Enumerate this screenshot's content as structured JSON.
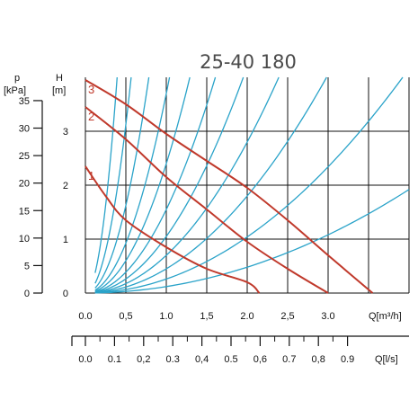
{
  "chart_data": {
    "type": "line",
    "title": "25-40 180",
    "colors": {
      "pump_curves": "#c0392b",
      "system_curves": "#2aa3c9",
      "grid": "#111111"
    },
    "x_axis": {
      "label": "Q[m³/h]",
      "range": [
        0,
        4.0
      ],
      "ticks": [
        {
          "v": 0.0,
          "t": "0.0"
        },
        {
          "v": 0.5,
          "t": "0,5"
        },
        {
          "v": 1.0,
          "t": "1.0"
        },
        {
          "v": 1.5,
          "t": "1,5"
        },
        {
          "v": 2.0,
          "t": "2.0"
        },
        {
          "v": 2.5,
          "t": "2,5"
        },
        {
          "v": 3.0,
          "t": "3.0"
        }
      ]
    },
    "x_axis_ls": {
      "label": "Q[l/s]",
      "ticks": [
        {
          "v": 0.0,
          "t": "0.0"
        },
        {
          "v": 0.1,
          "t": "0.1"
        },
        {
          "v": 0.2,
          "t": "0,2"
        },
        {
          "v": 0.3,
          "t": "0.3"
        },
        {
          "v": 0.4,
          "t": "0,4"
        },
        {
          "v": 0.5,
          "t": "0.5"
        },
        {
          "v": 0.6,
          "t": "0,6"
        },
        {
          "v": 0.7,
          "t": "0.7"
        },
        {
          "v": 0.8,
          "t": "0,8"
        },
        {
          "v": 0.9,
          "t": "0.9"
        }
      ]
    },
    "y_axis": {
      "label_line1": "H",
      "label_line2": "[m]",
      "range": [
        0,
        4.0
      ],
      "ticks": [
        {
          "v": 0,
          "t": "0"
        },
        {
          "v": 1,
          "t": "1"
        },
        {
          "v": 2,
          "t": "2"
        },
        {
          "v": 3,
          "t": "3"
        }
      ]
    },
    "y_axis_kpa": {
      "label_line1": "p",
      "label_line2": "[kPa]",
      "ticks": [
        {
          "v": 0,
          "t": "0"
        },
        {
          "v": 5,
          "t": "5"
        },
        {
          "v": 10,
          "t": "10"
        },
        {
          "v": 15,
          "t": "15"
        },
        {
          "v": 20,
          "t": "20"
        },
        {
          "v": 25,
          "t": "25"
        },
        {
          "v": 30,
          "t": "30"
        },
        {
          "v": 35,
          "t": "35"
        }
      ]
    },
    "pump_curves": [
      {
        "name": "1",
        "points": [
          [
            0,
            2.35
          ],
          [
            0.25,
            1.8
          ],
          [
            0.5,
            1.35
          ],
          [
            1.0,
            0.85
          ],
          [
            1.5,
            0.45
          ],
          [
            2.0,
            0.2
          ],
          [
            2.15,
            0.0
          ]
        ]
      },
      {
        "name": "2",
        "points": [
          [
            0,
            3.45
          ],
          [
            0.5,
            2.85
          ],
          [
            1.0,
            2.15
          ],
          [
            1.5,
            1.55
          ],
          [
            2.0,
            0.95
          ],
          [
            2.5,
            0.45
          ],
          [
            3.0,
            0.0
          ]
        ]
      },
      {
        "name": "3",
        "points": [
          [
            0,
            3.95
          ],
          [
            0.5,
            3.5
          ],
          [
            1.0,
            2.95
          ],
          [
            1.5,
            2.45
          ],
          [
            2.0,
            1.95
          ],
          [
            2.5,
            1.35
          ],
          [
            3.0,
            0.7
          ],
          [
            3.55,
            0.0
          ]
        ]
      }
    ],
    "system_curves_k": [
      26.0,
      12.5,
      6.5,
      3.7,
      2.4,
      1.55,
      1.05,
      0.7,
      0.45,
      0.26,
      0.12
    ]
  }
}
